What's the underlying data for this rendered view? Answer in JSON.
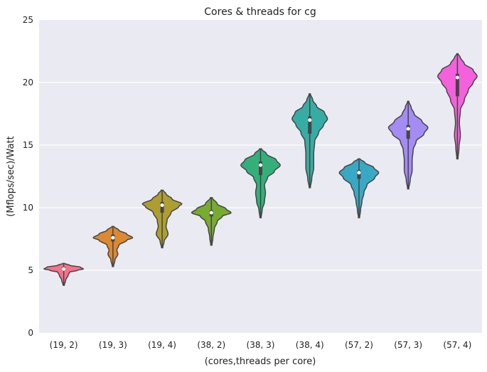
{
  "chart_data": {
    "type": "violin",
    "title": "Cores & threads for cg",
    "xlabel": "(cores,threads per core)",
    "ylabel": "(Mflops/sec)/Watt",
    "ylim": [
      0,
      25
    ],
    "yticks": [
      "0",
      "5",
      "10",
      "15",
      "20",
      "25"
    ],
    "grid": true,
    "categories": [
      "(19, 2)",
      "(19, 3)",
      "(19, 4)",
      "(38, 2)",
      "(38, 3)",
      "(38, 4)",
      "(57, 2)",
      "(57, 3)",
      "(57, 4)"
    ],
    "colors": [
      "#F77189",
      "#DC8932",
      "#AE9D31",
      "#77AB31",
      "#33B07A",
      "#36ADA4",
      "#38A9C5",
      "#A48CF4",
      "#F561DD"
    ],
    "violins": [
      {
        "median": 5.1,
        "q1": 5.0,
        "q3": 5.25,
        "min": 3.8,
        "max": 5.55,
        "density": [
          [
            3.8,
            0.03
          ],
          [
            4.2,
            0.1
          ],
          [
            4.6,
            0.22
          ],
          [
            4.85,
            0.3
          ],
          [
            5.0,
            0.7
          ],
          [
            5.1,
            1.0
          ],
          [
            5.25,
            0.85
          ],
          [
            5.4,
            0.3
          ],
          [
            5.55,
            0.05
          ]
        ]
      },
      {
        "median": 7.6,
        "q1": 7.3,
        "q3": 7.85,
        "min": 5.3,
        "max": 8.5,
        "density": [
          [
            5.3,
            0.03
          ],
          [
            5.8,
            0.1
          ],
          [
            6.3,
            0.25
          ],
          [
            6.6,
            0.2
          ],
          [
            7.0,
            0.3
          ],
          [
            7.4,
            0.7
          ],
          [
            7.6,
            1.0
          ],
          [
            7.9,
            0.7
          ],
          [
            8.2,
            0.3
          ],
          [
            8.5,
            0.05
          ]
        ]
      },
      {
        "median": 10.2,
        "q1": 9.6,
        "q3": 10.45,
        "min": 6.8,
        "max": 11.4,
        "density": [
          [
            6.8,
            0.03
          ],
          [
            7.3,
            0.1
          ],
          [
            7.9,
            0.3
          ],
          [
            8.5,
            0.2
          ],
          [
            9.0,
            0.25
          ],
          [
            9.6,
            0.45
          ],
          [
            10.1,
            0.85
          ],
          [
            10.3,
            1.0
          ],
          [
            10.7,
            0.5
          ],
          [
            11.1,
            0.2
          ],
          [
            11.4,
            0.05
          ]
        ]
      },
      {
        "median": 9.6,
        "q1": 9.3,
        "q3": 9.8,
        "min": 7.0,
        "max": 10.8,
        "density": [
          [
            7.0,
            0.03
          ],
          [
            7.6,
            0.08
          ],
          [
            8.3,
            0.15
          ],
          [
            8.9,
            0.3
          ],
          [
            9.3,
            0.55
          ],
          [
            9.6,
            1.0
          ],
          [
            9.9,
            0.75
          ],
          [
            10.3,
            0.3
          ],
          [
            10.8,
            0.05
          ]
        ]
      },
      {
        "median": 13.4,
        "q1": 12.6,
        "q3": 13.7,
        "min": 9.2,
        "max": 14.7,
        "density": [
          [
            9.2,
            0.03
          ],
          [
            9.8,
            0.08
          ],
          [
            10.5,
            0.2
          ],
          [
            11.2,
            0.25
          ],
          [
            11.8,
            0.2
          ],
          [
            12.4,
            0.35
          ],
          [
            12.9,
            0.7
          ],
          [
            13.4,
            1.0
          ],
          [
            13.8,
            0.8
          ],
          [
            14.3,
            0.3
          ],
          [
            14.7,
            0.05
          ]
        ]
      },
      {
        "median": 17.0,
        "q1": 15.9,
        "q3": 17.3,
        "min": 11.6,
        "max": 19.1,
        "density": [
          [
            11.6,
            0.03
          ],
          [
            12.3,
            0.1
          ],
          [
            13.2,
            0.2
          ],
          [
            14.3,
            0.2
          ],
          [
            15.3,
            0.25
          ],
          [
            16.0,
            0.45
          ],
          [
            16.6,
            0.7
          ],
          [
            17.1,
            0.9
          ],
          [
            17.6,
            0.75
          ],
          [
            18.1,
            0.35
          ],
          [
            18.6,
            0.15
          ],
          [
            19.1,
            0.03
          ]
        ]
      },
      {
        "median": 12.8,
        "q1": 12.3,
        "q3": 13.0,
        "min": 9.2,
        "max": 13.9,
        "density": [
          [
            9.2,
            0.03
          ],
          [
            9.8,
            0.08
          ],
          [
            10.5,
            0.15
          ],
          [
            11.2,
            0.25
          ],
          [
            11.8,
            0.4
          ],
          [
            12.4,
            0.8
          ],
          [
            12.8,
            1.0
          ],
          [
            13.2,
            0.75
          ],
          [
            13.6,
            0.3
          ],
          [
            13.9,
            0.05
          ]
        ]
      },
      {
        "median": 16.3,
        "q1": 15.5,
        "q3": 16.6,
        "min": 11.5,
        "max": 18.5,
        "density": [
          [
            11.5,
            0.03
          ],
          [
            12.2,
            0.1
          ],
          [
            13.0,
            0.2
          ],
          [
            13.8,
            0.2
          ],
          [
            14.6,
            0.25
          ],
          [
            15.3,
            0.4
          ],
          [
            15.9,
            0.8
          ],
          [
            16.4,
            1.0
          ],
          [
            16.9,
            0.7
          ],
          [
            17.5,
            0.3
          ],
          [
            18.0,
            0.15
          ],
          [
            18.5,
            0.03
          ]
        ]
      },
      {
        "median": 20.4,
        "q1": 18.9,
        "q3": 20.7,
        "min": 13.9,
        "max": 22.3,
        "density": [
          [
            13.9,
            0.03
          ],
          [
            14.8,
            0.08
          ],
          [
            15.8,
            0.15
          ],
          [
            16.8,
            0.1
          ],
          [
            17.8,
            0.15
          ],
          [
            18.6,
            0.35
          ],
          [
            19.4,
            0.55
          ],
          [
            20.0,
            0.8
          ],
          [
            20.5,
            1.0
          ],
          [
            21.0,
            0.8
          ],
          [
            21.5,
            0.35
          ],
          [
            22.0,
            0.15
          ],
          [
            22.3,
            0.03
          ]
        ]
      }
    ]
  }
}
